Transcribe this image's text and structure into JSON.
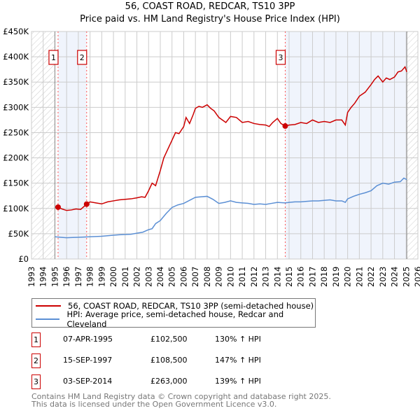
{
  "chart_data": {
    "type": "line",
    "title": "56, COAST ROAD, REDCAR, TS10 3PP",
    "subtitle": "Price paid vs. HM Land Registry's House Price Index (HPI)",
    "xlim": [
      1993,
      2026
    ],
    "ylim": [
      0,
      450000
    ],
    "yticks": [
      0,
      50000,
      100000,
      150000,
      200000,
      250000,
      300000,
      350000,
      400000,
      450000
    ],
    "ytick_labels": [
      "£0",
      "£50K",
      "£100K",
      "£150K",
      "£200K",
      "£250K",
      "£300K",
      "£350K",
      "£400K",
      "£450K"
    ],
    "xtick_labels": [
      "1993",
      "1994",
      "1995",
      "1996",
      "1997",
      "1998",
      "1999",
      "2000",
      "2001",
      "2002",
      "2003",
      "2004",
      "2005",
      "2006",
      "2007",
      "2008",
      "2009",
      "2010",
      "2011",
      "2012",
      "2013",
      "2014",
      "2015",
      "2016",
      "2017",
      "2018",
      "2019",
      "2020",
      "2021",
      "2022",
      "2023",
      "2024",
      "2025",
      "2026"
    ],
    "grid": true,
    "series": [
      {
        "name": "56, COAST ROAD, REDCAR, TS10 3PP (semi-detached house)",
        "color": "#cc0000",
        "x": [
          1995.27,
          1995.6,
          1996,
          1996.4,
          1996.8,
          1997.2,
          1997.71,
          1998,
          1998.5,
          1999,
          1999.5,
          2000,
          2000.5,
          2001,
          2001.5,
          2002,
          2002.4,
          2002.7,
          2003,
          2003.3,
          2003.6,
          2004,
          2004.3,
          2004.6,
          2005,
          2005.3,
          2005.6,
          2006,
          2006.2,
          2006.5,
          2006.8,
          2007,
          2007.3,
          2007.6,
          2008,
          2008.3,
          2008.6,
          2009,
          2009.3,
          2009.6,
          2010,
          2010.5,
          2011,
          2011.5,
          2012,
          2012.5,
          2013,
          2013.3,
          2013.6,
          2014,
          2014.3,
          2014.67,
          2015,
          2015.5,
          2016,
          2016.5,
          2017,
          2017.5,
          2018,
          2018.5,
          2019,
          2019.5,
          2019.8,
          2020,
          2020.3,
          2020.6,
          2021,
          2021.5,
          2022,
          2022.3,
          2022.6,
          2023,
          2023.3,
          2023.6,
          2024,
          2024.3,
          2024.6,
          2024.9,
          2025.05
        ],
        "y": [
          102500,
          99000,
          96000,
          97000,
          99000,
          98000,
          108500,
          113000,
          111000,
          109000,
          113000,
          115000,
          117000,
          118000,
          119000,
          121000,
          123000,
          122000,
          135000,
          150000,
          145000,
          175000,
          200000,
          215000,
          235000,
          250000,
          248000,
          262000,
          280000,
          268000,
          285000,
          298000,
          302000,
          300000,
          305000,
          298000,
          293000,
          280000,
          275000,
          270000,
          282000,
          280000,
          270000,
          272000,
          268000,
          266000,
          265000,
          262000,
          270000,
          278000,
          268000,
          263000,
          265000,
          266000,
          270000,
          268000,
          275000,
          270000,
          272000,
          270000,
          275000,
          275000,
          265000,
          290000,
          300000,
          308000,
          322000,
          330000,
          345000,
          355000,
          362000,
          350000,
          358000,
          355000,
          360000,
          370000,
          372000,
          380000,
          370000
        ]
      },
      {
        "name": "HPI: Average price, semi-detached house, Redcar and Cleveland",
        "color": "#5b8fd4",
        "x": [
          1995,
          1995.5,
          1996,
          1996.5,
          1997,
          1997.5,
          1998,
          1998.5,
          1999,
          1999.5,
          2000,
          2000.5,
          2001,
          2001.5,
          2002,
          2002.5,
          2003,
          2003.3,
          2003.6,
          2004,
          2004.5,
          2005,
          2005.5,
          2006,
          2006.5,
          2007,
          2007.5,
          2008,
          2008.5,
          2009,
          2009.5,
          2010,
          2010.5,
          2011,
          2011.5,
          2012,
          2012.5,
          2013,
          2013.5,
          2014,
          2014.67,
          2015,
          2015.5,
          2016,
          2016.5,
          2017,
          2017.5,
          2018,
          2018.5,
          2019,
          2019.5,
          2019.8,
          2020,
          2020.5,
          2021,
          2021.5,
          2022,
          2022.5,
          2023,
          2023.5,
          2024,
          2024.5,
          2024.8,
          2025.05
        ],
        "y": [
          44000,
          43000,
          42000,
          42500,
          43000,
          43500,
          44000,
          44500,
          45000,
          46000,
          47000,
          48000,
          48500,
          49000,
          51000,
          53000,
          58000,
          60000,
          70000,
          76000,
          90000,
          102000,
          107000,
          110000,
          116000,
          122000,
          123000,
          124000,
          118000,
          110000,
          112000,
          115000,
          112000,
          111000,
          110000,
          108000,
          109000,
          108000,
          110000,
          112000,
          111000,
          112000,
          113000,
          113000,
          114000,
          115000,
          115000,
          116000,
          117000,
          115000,
          115000,
          112000,
          119000,
          124000,
          128000,
          131000,
          135000,
          145000,
          150000,
          148000,
          152000,
          153000,
          160000,
          157000
        ]
      }
    ],
    "shaded_ranges": [
      [
        1995.27,
        1997.71
      ],
      [
        2014.67,
        2025.05
      ]
    ],
    "hatched_ranges": [
      [
        1993,
        1995
      ],
      [
        2025.05,
        2026
      ]
    ],
    "annotations": [
      {
        "label": "1",
        "x": 1995.27,
        "y": 102500
      },
      {
        "label": "2",
        "x": 1997.71,
        "y": 108500
      },
      {
        "label": "3",
        "x": 2014.67,
        "y": 263000
      }
    ]
  },
  "legend": {
    "property": "56, COAST ROAD, REDCAR, TS10 3PP (semi-detached house)",
    "hpi": "HPI: Average price, semi-detached house, Redcar and Cleveland"
  },
  "sales": [
    {
      "num": "1",
      "date": "07-APR-1995",
      "price": "£102,500",
      "hpi": "130% ↑ HPI"
    },
    {
      "num": "2",
      "date": "15-SEP-1997",
      "price": "£108,500",
      "hpi": "147% ↑ HPI"
    },
    {
      "num": "3",
      "date": "03-SEP-2014",
      "price": "£263,000",
      "hpi": "139% ↑ HPI"
    }
  ],
  "footer": {
    "line1": "Contains HM Land Registry data © Crown copyright and database right 2025.",
    "line2": "This data is licensed under the Open Government Licence v3.0."
  }
}
